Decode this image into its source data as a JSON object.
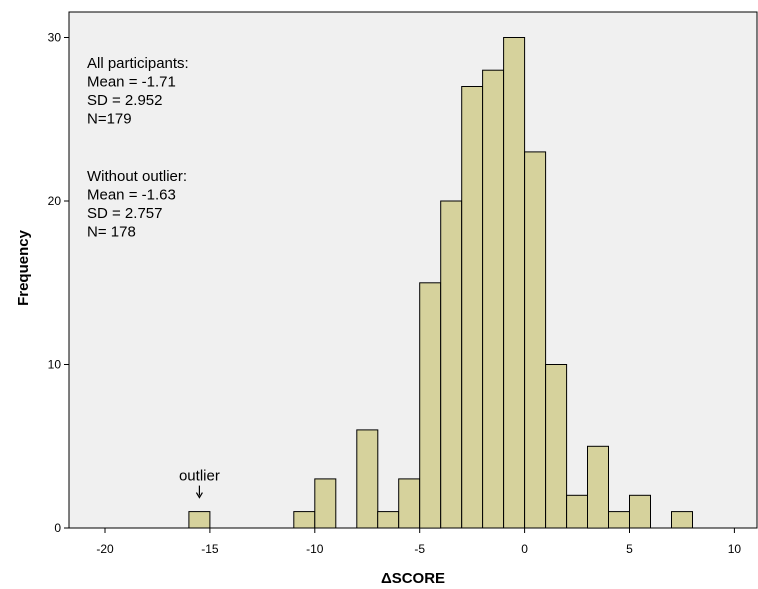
{
  "chart_data": {
    "type": "bar",
    "subtype": "histogram",
    "title": "",
    "xlabel": "ΔSCORE",
    "ylabel": "Frequency",
    "xlim": [
      -23,
      11
    ],
    "ylim": [
      0,
      32
    ],
    "x_ticks": [
      -20,
      -15,
      -10,
      -5,
      0,
      5,
      10
    ],
    "y_ticks": [
      0,
      10,
      20,
      30
    ],
    "bin_width": 1,
    "bins": [
      {
        "start": -16,
        "end": -15,
        "count": 1
      },
      {
        "start": -11,
        "end": -10,
        "count": 1
      },
      {
        "start": -10,
        "end": -9,
        "count": 3
      },
      {
        "start": -8,
        "end": -7,
        "count": 6
      },
      {
        "start": -7,
        "end": -6,
        "count": 1
      },
      {
        "start": -6,
        "end": -5,
        "count": 3
      },
      {
        "start": -5,
        "end": -4,
        "count": 15
      },
      {
        "start": -4,
        "end": -3,
        "count": 20
      },
      {
        "start": -3,
        "end": -2,
        "count": 27
      },
      {
        "start": -2,
        "end": -1,
        "count": 28
      },
      {
        "start": -1,
        "end": 0,
        "count": 30
      },
      {
        "start": 0,
        "end": 1,
        "count": 23
      },
      {
        "start": 1,
        "end": 2,
        "count": 10
      },
      {
        "start": 2,
        "end": 3,
        "count": 2
      },
      {
        "start": 3,
        "end": 4,
        "count": 5
      },
      {
        "start": 4,
        "end": 5,
        "count": 1
      },
      {
        "start": 5,
        "end": 6,
        "count": 2
      },
      {
        "start": 7,
        "end": 8,
        "count": 1
      }
    ],
    "grid": false,
    "bar_color": "#d6d29c",
    "plot_background": "#f0f0f0",
    "annotations": [
      {
        "text": "outlier",
        "x": -15.5,
        "y": 2.9,
        "arrow": true
      }
    ],
    "stats_text": {
      "all": [
        "All participants:",
        "Mean = -1.71",
        "SD = 2.952",
        "N=179"
      ],
      "without": [
        "Without outlier:",
        "Mean = -1.63",
        "SD =  2.757",
        "N= 178"
      ]
    }
  }
}
